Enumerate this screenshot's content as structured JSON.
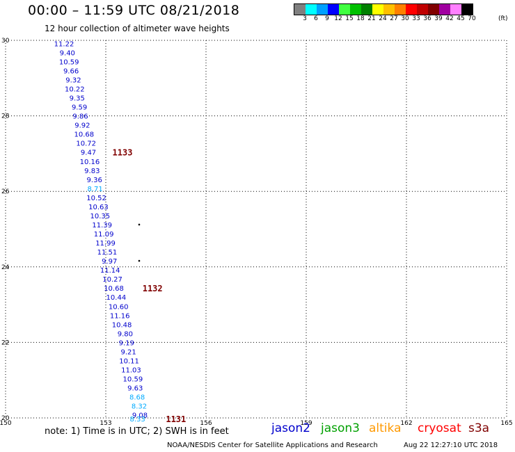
{
  "header": {
    "title": "00:00 – 11:59 UTC 08/21/2018",
    "subtitle": "12 hour collection of altimeter wave heights"
  },
  "color_scale": {
    "unit": "(ft)",
    "labels": [
      "3",
      "6",
      "9",
      "12",
      "15",
      "18",
      "21",
      "24",
      "27",
      "30",
      "33",
      "36",
      "39",
      "42",
      "45",
      "70"
    ],
    "colors": [
      "#808080",
      "#00ffff",
      "#00a0ff",
      "#0000ff",
      "#40ff40",
      "#00c000",
      "#008000",
      "#ffff00",
      "#ffc000",
      "#ff8000",
      "#ff0000",
      "#c00000",
      "#800000",
      "#a000a0",
      "#ff80ff",
      "#000000"
    ]
  },
  "map": {
    "lon_range": [
      150,
      165
    ],
    "lat_range": [
      20,
      30
    ],
    "lon_ticks": [
      "150",
      "153",
      "156",
      "159",
      "162",
      "165"
    ],
    "lat_ticks": [
      "30",
      "28",
      "26",
      "24",
      "22",
      "20"
    ],
    "grid": "dotted"
  },
  "readings": [
    {
      "text": "11.22",
      "lon": 151.75,
      "lat": 29.92,
      "color": "#0000cc"
    },
    {
      "text": "9.40",
      "lon": 151.85,
      "lat": 29.68,
      "color": "#0000cc"
    },
    {
      "text": "10.59",
      "lon": 151.9,
      "lat": 29.44,
      "color": "#0000cc"
    },
    {
      "text": "9.66",
      "lon": 151.96,
      "lat": 29.2,
      "color": "#0000cc"
    },
    {
      "text": "9.32",
      "lon": 152.03,
      "lat": 28.96,
      "color": "#0000cc"
    },
    {
      "text": "10.22",
      "lon": 152.07,
      "lat": 28.72,
      "color": "#0000cc"
    },
    {
      "text": "9.35",
      "lon": 152.14,
      "lat": 28.48,
      "color": "#0000cc"
    },
    {
      "text": "9.59",
      "lon": 152.21,
      "lat": 28.24,
      "color": "#0000cc"
    },
    {
      "text": "9.86",
      "lon": 152.24,
      "lat": 28.0,
      "color": "#0000cc"
    },
    {
      "text": "9.92",
      "lon": 152.3,
      "lat": 27.76,
      "color": "#0000cc"
    },
    {
      "text": "10.68",
      "lon": 152.35,
      "lat": 27.52,
      "color": "#0000cc"
    },
    {
      "text": "10.72",
      "lon": 152.41,
      "lat": 27.28,
      "color": "#0000cc"
    },
    {
      "text": "9.47",
      "lon": 152.48,
      "lat": 27.04,
      "color": "#0000cc"
    },
    {
      "text": "10.16",
      "lon": 152.52,
      "lat": 26.8,
      "color": "#0000cc"
    },
    {
      "text": "9.83",
      "lon": 152.59,
      "lat": 26.56,
      "color": "#0000cc"
    },
    {
      "text": "9.36",
      "lon": 152.66,
      "lat": 26.32,
      "color": "#0000cc"
    },
    {
      "text": "8.71",
      "lon": 152.68,
      "lat": 26.08,
      "color": "#00aaff"
    },
    {
      "text": "10.52",
      "lon": 152.72,
      "lat": 25.84,
      "color": "#0000cc"
    },
    {
      "text": "10.63",
      "lon": 152.78,
      "lat": 25.6,
      "color": "#0000cc"
    },
    {
      "text": "10.35",
      "lon": 152.83,
      "lat": 25.36,
      "color": "#0000cc"
    },
    {
      "text": "11.39",
      "lon": 152.89,
      "lat": 25.12,
      "color": "#0000cc"
    },
    {
      "text": "11.09",
      "lon": 152.94,
      "lat": 24.88,
      "color": "#0000cc"
    },
    {
      "text": "11.99",
      "lon": 152.99,
      "lat": 24.64,
      "color": "#0000cc"
    },
    {
      "text": "11.51",
      "lon": 153.04,
      "lat": 24.4,
      "color": "#0000cc"
    },
    {
      "text": "9.97",
      "lon": 153.11,
      "lat": 24.16,
      "color": "#0000cc"
    },
    {
      "text": "11.14",
      "lon": 153.13,
      "lat": 23.92,
      "color": "#0000cc"
    },
    {
      "text": "10.27",
      "lon": 153.2,
      "lat": 23.68,
      "color": "#0000cc"
    },
    {
      "text": "10.68",
      "lon": 153.24,
      "lat": 23.44,
      "color": "#0000cc"
    },
    {
      "text": "10.44",
      "lon": 153.31,
      "lat": 23.2,
      "color": "#0000cc"
    },
    {
      "text": "10.60",
      "lon": 153.38,
      "lat": 22.96,
      "color": "#0000cc"
    },
    {
      "text": "11.16",
      "lon": 153.42,
      "lat": 22.72,
      "color": "#0000cc"
    },
    {
      "text": "10.48",
      "lon": 153.48,
      "lat": 22.48,
      "color": "#0000cc"
    },
    {
      "text": "9.80",
      "lon": 153.58,
      "lat": 22.24,
      "color": "#0000cc"
    },
    {
      "text": "9.19",
      "lon": 153.62,
      "lat": 22.0,
      "color": "#0000cc"
    },
    {
      "text": "9.21",
      "lon": 153.68,
      "lat": 21.76,
      "color": "#0000cc"
    },
    {
      "text": "10.11",
      "lon": 153.7,
      "lat": 21.52,
      "color": "#0000cc"
    },
    {
      "text": "11.03",
      "lon": 153.76,
      "lat": 21.28,
      "color": "#0000cc"
    },
    {
      "text": "10.59",
      "lon": 153.81,
      "lat": 21.04,
      "color": "#0000cc"
    },
    {
      "text": "9.63",
      "lon": 153.88,
      "lat": 20.8,
      "color": "#0000cc"
    },
    {
      "text": "8.68",
      "lon": 153.94,
      "lat": 20.56,
      "color": "#00aaff"
    },
    {
      "text": "8.32",
      "lon": 154.0,
      "lat": 20.32,
      "color": "#00aaff"
    },
    {
      "text": "9.08",
      "lon": 154.02,
      "lat": 20.08,
      "color": "#0000cc"
    },
    {
      "text": "8.33",
      "lon": 153.95,
      "lat": 19.98,
      "color": "#00aaff"
    }
  ],
  "time_labels": [
    {
      "text": "1133",
      "lon": 153.5,
      "lat": 27.04,
      "color": "#800000"
    },
    {
      "text": "1132",
      "lon": 154.4,
      "lat": 23.44,
      "color": "#800000"
    },
    {
      "text": "1131",
      "lon": 155.1,
      "lat": 19.98,
      "color": "#800000"
    }
  ],
  "dots": [
    {
      "lon": 154.0,
      "lat": 25.12
    },
    {
      "lon": 154.0,
      "lat": 24.16
    }
  ],
  "note": "note: 1) Time is in UTC; 2) SWH is in feet",
  "satellites": [
    {
      "name": "jason2",
      "color": "#0000cc"
    },
    {
      "name": "jason3",
      "color": "#00a000"
    },
    {
      "name": "altika",
      "color": "#ff9900"
    },
    {
      "name": "cryosat",
      "color": "#ff0000"
    },
    {
      "name": "s3a",
      "color": "#800000"
    }
  ],
  "footer": {
    "credit": "NOAA/NESDIS Center for Satellite Applications and Research",
    "timestamp": "Aug 22 12:27:10 UTC 2018"
  }
}
